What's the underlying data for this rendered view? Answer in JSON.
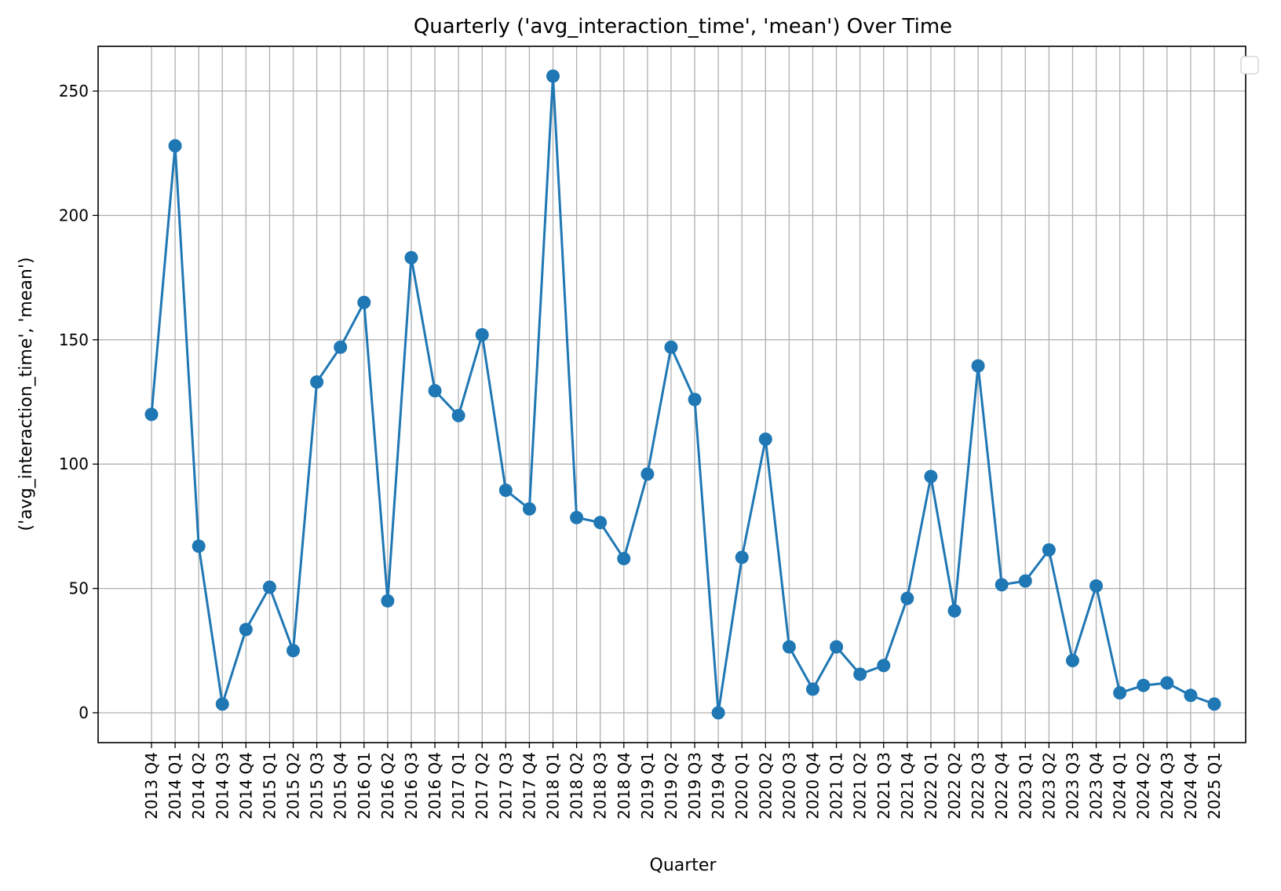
{
  "chart_data": {
    "type": "line",
    "title": "Quarterly ('avg_interaction_time', 'mean') Over Time",
    "xlabel": "Quarter",
    "ylabel": "('avg_interaction_time', 'mean')",
    "ylim": [
      -12,
      268
    ],
    "yticks": [
      0,
      50,
      100,
      150,
      200,
      250
    ],
    "grid": true,
    "legend": "top-right",
    "color": "#1f77b4",
    "categories": [
      "2013 Q4",
      "2014 Q1",
      "2014 Q2",
      "2014 Q3",
      "2014 Q4",
      "2015 Q1",
      "2015 Q2",
      "2015 Q3",
      "2015 Q4",
      "2016 Q1",
      "2016 Q2",
      "2016 Q3",
      "2016 Q4",
      "2017 Q1",
      "2017 Q2",
      "2017 Q3",
      "2017 Q4",
      "2018 Q1",
      "2018 Q2",
      "2018 Q3",
      "2018 Q4",
      "2019 Q1",
      "2019 Q2",
      "2019 Q3",
      "2019 Q4",
      "2020 Q1",
      "2020 Q2",
      "2020 Q3",
      "2020 Q4",
      "2021 Q1",
      "2021 Q2",
      "2021 Q3",
      "2021 Q4",
      "2022 Q1",
      "2022 Q2",
      "2022 Q3",
      "2022 Q4",
      "2023 Q1",
      "2023 Q2",
      "2023 Q3",
      "2023 Q4",
      "2024 Q1",
      "2024 Q2",
      "2024 Q3",
      "2024 Q4",
      "2025 Q1"
    ],
    "values": [
      120,
      228,
      67,
      3.5,
      33.5,
      50.5,
      25,
      133,
      147,
      165,
      45,
      183,
      129.5,
      119.5,
      152,
      89.5,
      82,
      256,
      78.5,
      76.5,
      62,
      96,
      147,
      126,
      0,
      62.5,
      110,
      26.5,
      9.5,
      26.5,
      15.5,
      19,
      46,
      95,
      41,
      139.5,
      51.5,
      53,
      65.5,
      21,
      51,
      8,
      11,
      12,
      7,
      3.5
    ]
  }
}
